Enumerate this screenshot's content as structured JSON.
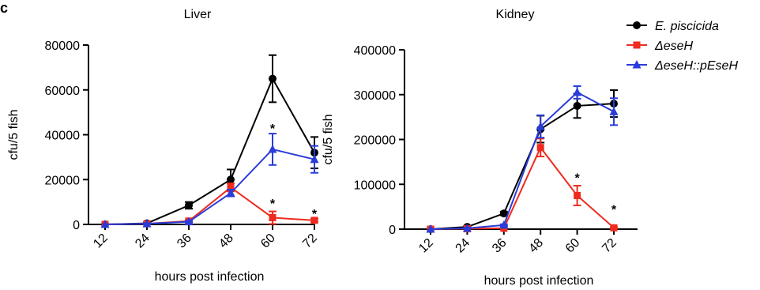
{
  "panel_label": "c",
  "colors": {
    "axis": "#000000"
  },
  "chart_data": [
    {
      "type": "line",
      "title": "Liver",
      "xlabel": "hours post infection",
      "ylabel": "cfu/5 fish",
      "categories": [
        "12",
        "24",
        "36",
        "48",
        "60",
        "72"
      ],
      "ylim": [
        0,
        80000
      ],
      "yticks": [
        "0",
        "20000",
        "40000",
        "60000",
        "80000"
      ],
      "grid": false,
      "series": [
        {
          "name": "E. piscicida",
          "color": "#000000",
          "marker": "circle",
          "values": [
            0,
            500,
            8500,
            20000,
            65000,
            32000
          ],
          "errors": [
            0,
            300,
            1500,
            4500,
            10500,
            7000
          ]
        },
        {
          "name": "ΔeseH",
          "color": "#ee2b1e",
          "marker": "square",
          "values": [
            0,
            300,
            1500,
            16500,
            3000,
            1800
          ],
          "errors": [
            0,
            200,
            400,
            1800,
            2800,
            700
          ]
        },
        {
          "name": "ΔeseH::pEseH",
          "color": "#2a3cd8",
          "marker": "triangle",
          "values": [
            0,
            300,
            1200,
            14000,
            33500,
            29000
          ],
          "errors": [
            0,
            200,
            400,
            1500,
            7000,
            6000
          ]
        }
      ],
      "annotations": [
        {
          "text": "*",
          "category": "60",
          "y": 43000
        },
        {
          "text": "*",
          "category": "60",
          "y": 9500
        },
        {
          "text": "*",
          "category": "72",
          "y": 5000
        }
      ]
    },
    {
      "type": "line",
      "title": "Kidney",
      "xlabel": "hours post infection",
      "ylabel": "cfu/5 fish",
      "categories": [
        "12",
        "24",
        "36",
        "48",
        "60",
        "72"
      ],
      "ylim": [
        0,
        400000
      ],
      "yticks": [
        "0",
        "100000",
        "200000",
        "300000",
        "400000"
      ],
      "grid": false,
      "legend_position": "top-right",
      "series": [
        {
          "name": "E. piscicida",
          "color": "#000000",
          "marker": "circle",
          "values": [
            0,
            5000,
            35000,
            223000,
            275000,
            280000
          ],
          "errors": [
            0,
            2000,
            4000,
            30000,
            27000,
            30000
          ]
        },
        {
          "name": "ΔeseH",
          "color": "#ee2b1e",
          "marker": "square",
          "values": [
            0,
            1000,
            2000,
            182000,
            75000,
            3000
          ],
          "errors": [
            0,
            500,
            1000,
            20000,
            22000,
            1500
          ]
        },
        {
          "name": "ΔeseH::pEseH",
          "color": "#2a3cd8",
          "marker": "triangle",
          "values": [
            0,
            2000,
            9000,
            229000,
            305000,
            262000
          ],
          "errors": [
            0,
            1000,
            2000,
            25000,
            14000,
            30000
          ]
        }
      ],
      "annotations": [
        {
          "text": "*",
          "category": "60",
          "y": 115000
        },
        {
          "text": "*",
          "category": "72",
          "y": 45000
        }
      ]
    }
  ]
}
